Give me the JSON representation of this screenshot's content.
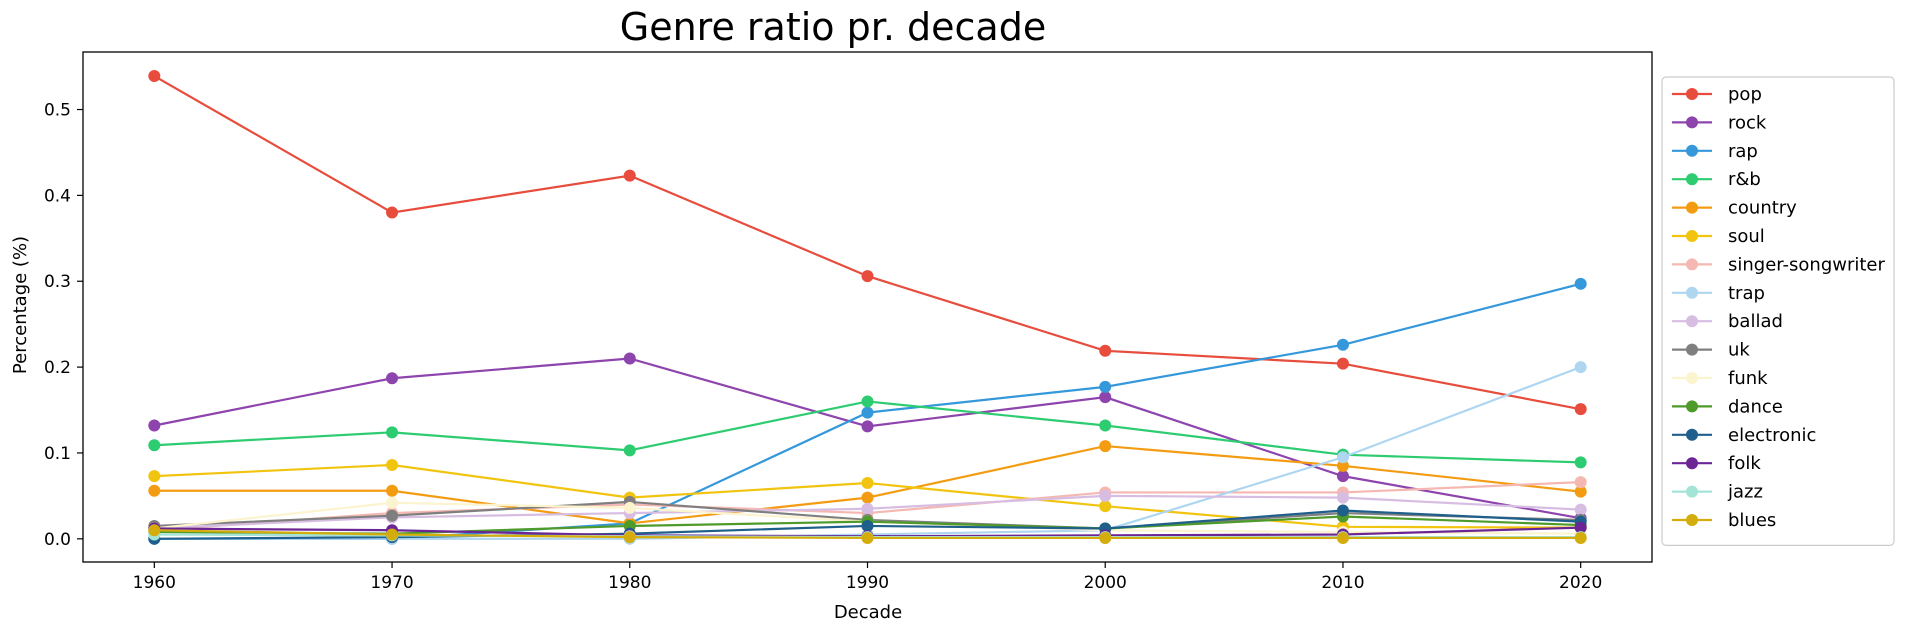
{
  "chart_data": {
    "type": "line",
    "title": "Genre ratio pr. decade",
    "xlabel": "Decade",
    "ylabel": "Percentage (%)",
    "x": [
      1960,
      1970,
      1980,
      1990,
      2000,
      2010,
      2020
    ],
    "xlim": [
      1957,
      2023
    ],
    "ylim": [
      -0.027,
      0.567
    ],
    "xticks": [
      "1960",
      "1970",
      "1980",
      "1990",
      "2000",
      "2010",
      "2020"
    ],
    "yticks": [
      "0.0",
      "0.1",
      "0.2",
      "0.3",
      "0.4",
      "0.5"
    ],
    "ytick_values": [
      0,
      0.1,
      0.2,
      0.3,
      0.4,
      0.5
    ],
    "grid": false,
    "legend": "outside-right",
    "series": [
      {
        "name": "pop",
        "color": "#e74c3c",
        "values": [
          0.539,
          0.38,
          0.423,
          0.306,
          0.219,
          0.204,
          0.151
        ]
      },
      {
        "name": "rock",
        "color": "#8e44ad",
        "values": [
          0.132,
          0.187,
          0.21,
          0.131,
          0.165,
          0.073,
          0.024
        ]
      },
      {
        "name": "rap",
        "color": "#3498db",
        "values": [
          0.0,
          0.0,
          0.018,
          0.147,
          0.177,
          0.226,
          0.297
        ]
      },
      {
        "name": "r&b",
        "color": "#2ecc71",
        "values": [
          0.109,
          0.124,
          0.103,
          0.16,
          0.132,
          0.098,
          0.089
        ]
      },
      {
        "name": "country",
        "color": "#f39c12",
        "values": [
          0.056,
          0.056,
          0.018,
          0.048,
          0.108,
          0.085,
          0.055
        ]
      },
      {
        "name": "soul",
        "color": "#f1c40f",
        "values": [
          0.073,
          0.086,
          0.048,
          0.065,
          0.038,
          0.014,
          0.013
        ]
      },
      {
        "name": "singer-songwriter",
        "color": "#f5b7b1",
        "values": [
          0.01,
          0.03,
          0.04,
          0.03,
          0.054,
          0.054,
          0.066
        ]
      },
      {
        "name": "trap",
        "color": "#aed6f1",
        "values": [
          0.0,
          0.0,
          0.0,
          0.005,
          0.01,
          0.095,
          0.2
        ]
      },
      {
        "name": "ballad",
        "color": "#d7bde2",
        "values": [
          0.012,
          0.025,
          0.03,
          0.035,
          0.05,
          0.048,
          0.034
        ]
      },
      {
        "name": "uk",
        "color": "#7f7f7f",
        "values": [
          0.015,
          0.027,
          0.043,
          0.022,
          0.012,
          0.03,
          0.022
        ]
      },
      {
        "name": "funk",
        "color": "#fcf3cf",
        "values": [
          0.012,
          0.042,
          0.036,
          0.02,
          0.01,
          0.008,
          0.006
        ]
      },
      {
        "name": "dance",
        "color": "#4e9a2a",
        "values": [
          0.008,
          0.006,
          0.015,
          0.02,
          0.012,
          0.026,
          0.016
        ]
      },
      {
        "name": "electronic",
        "color": "#1f5f8b",
        "values": [
          0.0,
          0.002,
          0.006,
          0.015,
          0.012,
          0.033,
          0.02
        ]
      },
      {
        "name": "folk",
        "color": "#6c2594",
        "values": [
          0.012,
          0.01,
          0.004,
          0.003,
          0.004,
          0.005,
          0.013
        ]
      },
      {
        "name": "jazz",
        "color": "#a3e4d7",
        "values": [
          0.005,
          0.004,
          0.003,
          0.002,
          0.002,
          0.002,
          0.002
        ]
      },
      {
        "name": "blues",
        "color": "#d4ac0d",
        "values": [
          0.01,
          0.005,
          0.002,
          0.001,
          0.001,
          0.001,
          0.001
        ]
      }
    ]
  }
}
